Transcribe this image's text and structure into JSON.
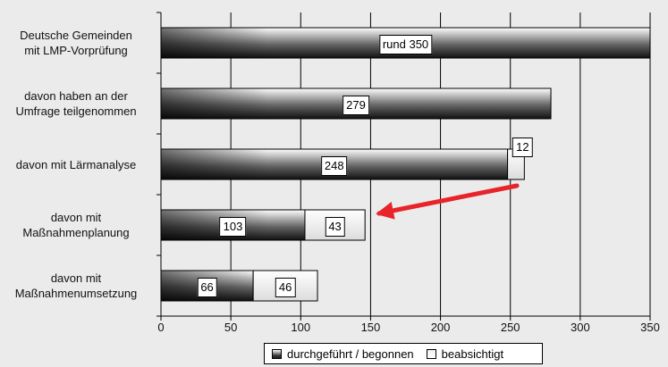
{
  "chart_data": {
    "type": "bar",
    "orientation": "horizontal",
    "stacked": true,
    "title": "",
    "xlabel": "",
    "ylabel": "",
    "categories": [
      [
        "Deutsche Gemeinden",
        "mit LMP-Vorprüfung"
      ],
      [
        "davon haben an der",
        "Umfrage teilgenommen"
      ],
      [
        "davon mit Lärmanalyse"
      ],
      [
        "davon mit",
        "Maßnahmenplanung"
      ],
      [
        "davon mit",
        "Maßnahmenumsetzung"
      ]
    ],
    "series": [
      {
        "name": "durchgeführt / begonnen",
        "values": [
          350,
          279,
          248,
          103,
          66
        ]
      },
      {
        "name": "beabsichtigt",
        "values": [
          0,
          0,
          12,
          43,
          46
        ]
      }
    ],
    "data_labels": [
      [
        "rund 350",
        "279",
        "248",
        "103",
        "66"
      ],
      [
        null,
        null,
        "12",
        "43",
        "46"
      ]
    ],
    "xlim": [
      0,
      350
    ],
    "xticks": [
      0,
      50,
      100,
      150,
      200,
      250,
      300,
      350
    ],
    "grid": "vertical",
    "legend_position": "bottom",
    "annotation": "red arrow pointing to the Maßnahmenplanung bar",
    "colors": {
      "dark_series": "#222222",
      "light_series": "#f4f4f4",
      "arrow": "#e8242a",
      "background": "#ebebeb"
    }
  }
}
